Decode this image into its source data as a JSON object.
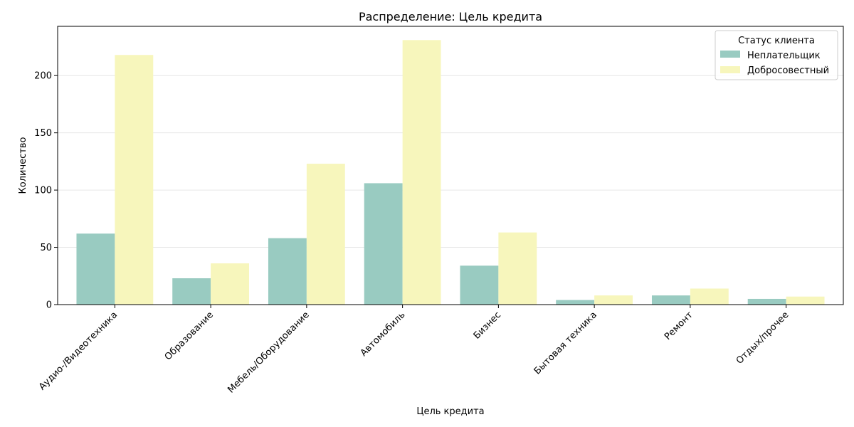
{
  "chart_data": {
    "type": "bar",
    "title": "Распределение: Цель кредита",
    "xlabel": "Цель кредита",
    "ylabel": "Количество",
    "ylim": [
      0,
      243
    ],
    "yticks": [
      0,
      50,
      100,
      150,
      200
    ],
    "grid": "y",
    "legend": {
      "title": "Статус клиента",
      "placement": "top-right"
    },
    "categories": [
      "Аудио-/Видеотехника",
      "Образование",
      "Мебель/Оборудование",
      "Автомобиль",
      "Бизнес",
      "Бытовая техника",
      "Ремонт",
      "Отдых/прочее"
    ],
    "series": [
      {
        "name": "Неплательщик",
        "color": "#99cbc1",
        "values": [
          62,
          23,
          58,
          106,
          34,
          4,
          8,
          5
        ]
      },
      {
        "name": "Добросовестный",
        "color": "#f7f6bc",
        "values": [
          218,
          36,
          123,
          231,
          63,
          8,
          14,
          7
        ]
      }
    ]
  }
}
